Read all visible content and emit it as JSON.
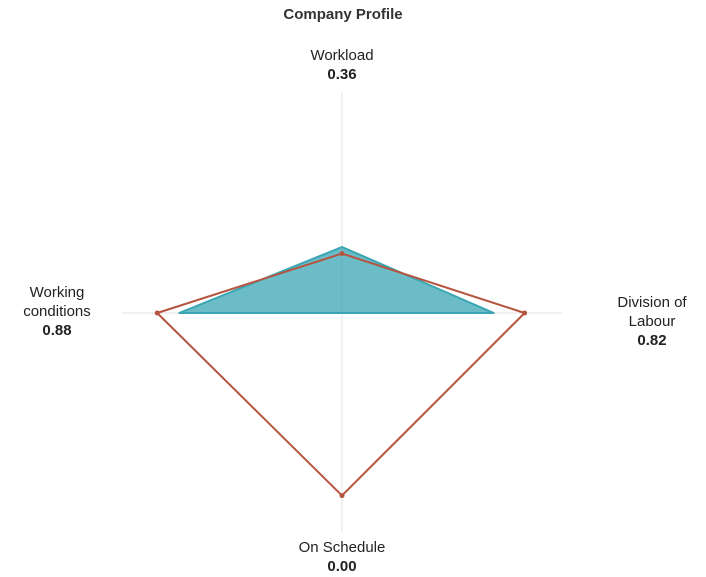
{
  "chart_data": {
    "type": "radar",
    "title": "Company Profile",
    "categories": [
      "Workload",
      "Division of Labour",
      "On Schedule",
      "Working conditions"
    ],
    "category_scores": [
      "0.36",
      "0.82",
      "0.00",
      "0.88"
    ],
    "rlim": [
      0,
      1
    ],
    "series": [
      {
        "color": "#3aa5b3",
        "fill": true,
        "values": [
          0.3,
          0.69,
          0,
          0.74
        ]
      },
      {
        "color": "#b5543f",
        "fill": false,
        "values": [
          0.27,
          0.83,
          0.83,
          0.84
        ]
      }
    ]
  }
}
